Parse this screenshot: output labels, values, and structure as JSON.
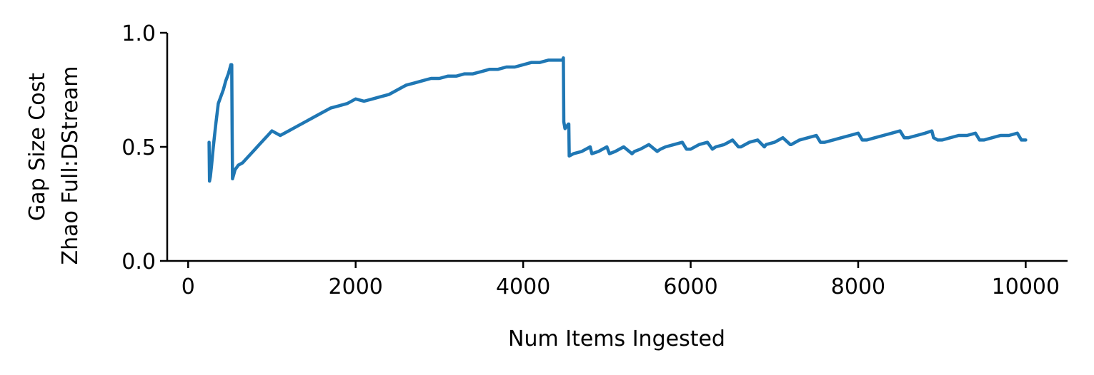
{
  "chart_data": {
    "type": "line",
    "title": "",
    "xlabel": "Num Items Ingested",
    "ylabel_lines": [
      "Gap Size Cost",
      "Zhao Full:DStream"
    ],
    "xlim": [
      -250,
      10500
    ],
    "ylim": [
      0,
      1
    ],
    "x_ticks": [
      {
        "value": 0,
        "label": "0"
      },
      {
        "value": 2000,
        "label": "2000"
      },
      {
        "value": 4000,
        "label": "4000"
      },
      {
        "value": 6000,
        "label": "6000"
      },
      {
        "value": 8000,
        "label": "8000"
      },
      {
        "value": 10000,
        "label": "10000"
      }
    ],
    "y_ticks": [
      {
        "value": 0,
        "label": "0.0"
      },
      {
        "value": 0.5,
        "label": "0.5"
      },
      {
        "value": 1,
        "label": "1.0"
      }
    ],
    "grid": false,
    "series": [
      {
        "color": "#1f77b4",
        "x": [
          250,
          255,
          265,
          280,
          300,
          330,
          360,
          390,
          420,
          450,
          480,
          510,
          520,
          525,
          530,
          545,
          560,
          580,
          600,
          650,
          700,
          750,
          800,
          850,
          900,
          950,
          1000,
          1050,
          1100,
          1200,
          1300,
          1400,
          1500,
          1600,
          1700,
          1800,
          1900,
          2000,
          2100,
          2200,
          2300,
          2400,
          2500,
          2600,
          2700,
          2800,
          2900,
          3000,
          3100,
          3200,
          3300,
          3400,
          3500,
          3600,
          3700,
          3800,
          3900,
          4000,
          4100,
          4200,
          4300,
          4400,
          4470,
          4480,
          4485,
          4500,
          4520,
          4540,
          4545,
          4550,
          4600,
          4700,
          4800,
          4820,
          4900,
          5000,
          5030,
          5100,
          5200,
          5300,
          5330,
          5400,
          5500,
          5600,
          5640,
          5700,
          5800,
          5900,
          5950,
          6000,
          6100,
          6200,
          6260,
          6300,
          6400,
          6500,
          6570,
          6600,
          6700,
          6800,
          6880,
          6900,
          7000,
          7100,
          7190,
          7200,
          7300,
          7400,
          7500,
          7550,
          7600,
          7700,
          7800,
          7900,
          8000,
          8050,
          8100,
          8200,
          8300,
          8400,
          8500,
          8550,
          8600,
          8700,
          8800,
          8880,
          8900,
          8950,
          9000,
          9100,
          9200,
          9300,
          9400,
          9450,
          9500,
          9600,
          9700,
          9800,
          9900,
          9950,
          10000
        ],
        "y": [
          0.52,
          0.35,
          0.37,
          0.42,
          0.5,
          0.6,
          0.69,
          0.72,
          0.75,
          0.79,
          0.82,
          0.86,
          0.86,
          0.6,
          0.36,
          0.38,
          0.4,
          0.41,
          0.42,
          0.43,
          0.45,
          0.47,
          0.49,
          0.51,
          0.53,
          0.55,
          0.57,
          0.56,
          0.55,
          0.57,
          0.59,
          0.61,
          0.63,
          0.65,
          0.67,
          0.68,
          0.69,
          0.71,
          0.7,
          0.71,
          0.72,
          0.73,
          0.75,
          0.77,
          0.78,
          0.79,
          0.8,
          0.8,
          0.81,
          0.81,
          0.82,
          0.82,
          0.83,
          0.84,
          0.84,
          0.85,
          0.85,
          0.86,
          0.87,
          0.87,
          0.88,
          0.88,
          0.88,
          0.89,
          0.61,
          0.58,
          0.59,
          0.6,
          0.6,
          0.46,
          0.47,
          0.48,
          0.5,
          0.47,
          0.48,
          0.5,
          0.47,
          0.48,
          0.5,
          0.47,
          0.48,
          0.49,
          0.51,
          0.48,
          0.49,
          0.5,
          0.51,
          0.52,
          0.49,
          0.49,
          0.51,
          0.52,
          0.49,
          0.5,
          0.51,
          0.53,
          0.5,
          0.5,
          0.52,
          0.53,
          0.5,
          0.51,
          0.52,
          0.54,
          0.51,
          0.51,
          0.53,
          0.54,
          0.55,
          0.52,
          0.52,
          0.53,
          0.54,
          0.55,
          0.56,
          0.53,
          0.53,
          0.54,
          0.55,
          0.56,
          0.57,
          0.54,
          0.54,
          0.55,
          0.56,
          0.57,
          0.54,
          0.53,
          0.53,
          0.54,
          0.55,
          0.55,
          0.56,
          0.53,
          0.53,
          0.54,
          0.55,
          0.55,
          0.56,
          0.53,
          0.53
        ]
      }
    ]
  }
}
